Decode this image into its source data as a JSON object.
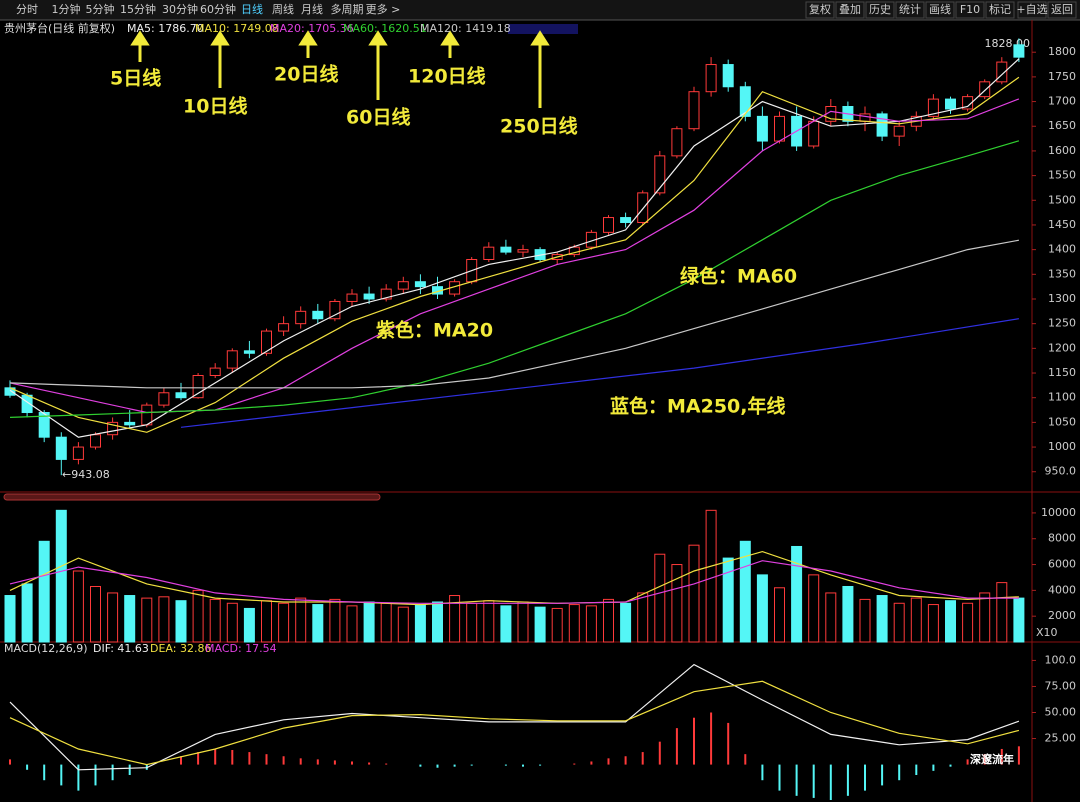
{
  "toolbar": {
    "left": [
      "分时",
      "1分钟",
      "5分钟",
      "15分钟",
      "30分钟",
      "60分钟",
      "日线",
      "周线",
      "月线",
      "多周期",
      "更多 >"
    ],
    "selected_index": 6,
    "right": [
      "复权",
      "叠加",
      "历史",
      "统计",
      "画线",
      "F10",
      "标记",
      "+自选",
      "返回"
    ]
  },
  "watermark": "深邃流年",
  "chart_data": [
    {
      "type": "candlestick",
      "title": "贵州茅台(日线 前复权)",
      "up_color": "#ff3a3a",
      "down_color": "#54f6f6",
      "open": [
        1120,
        1105,
        1070,
        1020,
        975,
        1000,
        1025,
        1050,
        1045,
        1085,
        1110,
        1100,
        1145,
        1160,
        1195,
        1190,
        1235,
        1250,
        1275,
        1260,
        1295,
        1310,
        1300,
        1320,
        1335,
        1325,
        1310,
        1335,
        1380,
        1405,
        1395,
        1400,
        1380,
        1390,
        1405,
        1435,
        1465,
        1455,
        1515,
        1590,
        1645,
        1720,
        1775,
        1730,
        1670,
        1620,
        1670,
        1610,
        1660,
        1690,
        1660,
        1675,
        1630,
        1650,
        1670,
        1705,
        1685,
        1710,
        1740,
        1815
      ],
      "high": [
        1135,
        1110,
        1075,
        1030,
        1010,
        1030,
        1060,
        1075,
        1090,
        1120,
        1130,
        1150,
        1170,
        1200,
        1215,
        1240,
        1265,
        1285,
        1290,
        1300,
        1320,
        1325,
        1330,
        1345,
        1350,
        1345,
        1340,
        1385,
        1415,
        1420,
        1410,
        1405,
        1395,
        1410,
        1440,
        1470,
        1475,
        1520,
        1600,
        1650,
        1730,
        1790,
        1785,
        1740,
        1690,
        1680,
        1690,
        1670,
        1705,
        1700,
        1690,
        1680,
        1660,
        1680,
        1715,
        1710,
        1715,
        1745,
        1790,
        1828
      ],
      "low": [
        1100,
        1060,
        1010,
        943.08,
        965,
        995,
        1015,
        1040,
        1040,
        1080,
        1095,
        1098,
        1140,
        1150,
        1180,
        1185,
        1225,
        1240,
        1250,
        1255,
        1285,
        1290,
        1295,
        1310,
        1310,
        1300,
        1305,
        1330,
        1375,
        1390,
        1385,
        1375,
        1370,
        1385,
        1400,
        1430,
        1445,
        1450,
        1510,
        1585,
        1640,
        1710,
        1720,
        1660,
        1600,
        1615,
        1600,
        1605,
        1650,
        1650,
        1640,
        1620,
        1610,
        1640,
        1665,
        1675,
        1680,
        1705,
        1735,
        1780
      ],
      "close": [
        1105,
        1070,
        1020,
        975,
        1000,
        1025,
        1050,
        1045,
        1085,
        1110,
        1100,
        1145,
        1160,
        1195,
        1190,
        1235,
        1250,
        1275,
        1260,
        1295,
        1310,
        1300,
        1320,
        1335,
        1325,
        1310,
        1335,
        1380,
        1405,
        1395,
        1400,
        1380,
        1390,
        1405,
        1435,
        1465,
        1455,
        1515,
        1590,
        1645,
        1720,
        1775,
        1730,
        1670,
        1620,
        1670,
        1610,
        1660,
        1690,
        1660,
        1675,
        1630,
        1650,
        1670,
        1705,
        1685,
        1710,
        1740,
        1780,
        1790
      ],
      "ylim": [
        913,
        1845
      ],
      "yticks": [
        {
          "value": 950,
          "label": "950.0"
        },
        1000,
        1050,
        1100,
        1150,
        1200,
        1250,
        1300,
        1350,
        1400,
        1450,
        1500,
        1550,
        1600,
        1650,
        1700,
        1750,
        1800
      ],
      "lines": [
        {
          "label": "MA5: 1786.70",
          "color": "#f0f0f0",
          "x": [
            0,
            4,
            8,
            12,
            16,
            20,
            24,
            28,
            32,
            36,
            40,
            44,
            48,
            52,
            56,
            59
          ],
          "values": [
            1115,
            1020,
            1045,
            1130,
            1215,
            1285,
            1320,
            1370,
            1395,
            1440,
            1610,
            1700,
            1650,
            1660,
            1690,
            1786.7
          ]
        },
        {
          "label": "MA10: 1749.08",
          "color": "#f0e040",
          "x": [
            0,
            4,
            8,
            12,
            16,
            20,
            24,
            28,
            32,
            36,
            40,
            44,
            48,
            52,
            56,
            59
          ],
          "values": [
            1120,
            1060,
            1030,
            1090,
            1180,
            1255,
            1305,
            1345,
            1385,
            1420,
            1540,
            1720,
            1665,
            1655,
            1675,
            1749.08
          ]
        },
        {
          "label": "MA20: 1705.36",
          "color": "#e040e0",
          "x": [
            0,
            4,
            8,
            12,
            16,
            20,
            24,
            28,
            32,
            36,
            40,
            44,
            48,
            52,
            56,
            59
          ],
          "values": [
            1130,
            1100,
            1070,
            1075,
            1120,
            1200,
            1270,
            1320,
            1370,
            1400,
            1480,
            1600,
            1680,
            1660,
            1665,
            1705.36
          ]
        },
        {
          "label": "MA60: 1620.51",
          "color": "#30d030",
          "x": [
            0,
            4,
            8,
            12,
            16,
            20,
            24,
            28,
            32,
            36,
            40,
            44,
            48,
            52,
            56,
            59
          ],
          "values": [
            1060,
            1065,
            1070,
            1075,
            1085,
            1100,
            1130,
            1170,
            1220,
            1270,
            1340,
            1420,
            1500,
            1550,
            1590,
            1620.51
          ]
        },
        {
          "label": "MA120: 1419.18",
          "color": "#c8c8c8",
          "x": [
            0,
            4,
            8,
            12,
            16,
            20,
            24,
            28,
            32,
            36,
            40,
            44,
            48,
            52,
            56,
            59
          ],
          "values": [
            1130,
            1125,
            1120,
            1120,
            1120,
            1120,
            1125,
            1140,
            1170,
            1200,
            1240,
            1280,
            1320,
            1360,
            1400,
            1419.18
          ]
        },
        {
          "color": "#3030e0",
          "x": [
            10,
            20,
            30,
            40,
            50,
            59
          ],
          "values": [
            1040,
            1080,
            1120,
            1160,
            1210,
            1260
          ]
        }
      ],
      "high_label": "1828.00",
      "low_label": "←943.08",
      "annotations": [
        "5日线",
        "10日线",
        "20日线",
        "60日线",
        "120日线",
        "250日线",
        "紫色：MA20",
        "绿色：MA60",
        "蓝色：MA250,年线"
      ]
    },
    {
      "type": "volume",
      "values": [
        3600,
        4500,
        7800,
        10200,
        5500,
        4300,
        3800,
        3600,
        3400,
        3500,
        3200,
        4000,
        3300,
        3000,
        2600,
        3200,
        3000,
        3400,
        2900,
        3300,
        2800,
        3100,
        3000,
        2700,
        2900,
        3100,
        3600,
        3000,
        3200,
        2800,
        3100,
        2700,
        2600,
        2900,
        2800,
        3300,
        3000,
        3800,
        6800,
        6000,
        7500,
        10200,
        6500,
        7800,
        5200,
        4200,
        7400,
        5200,
        3800,
        4300,
        3300,
        3600,
        3000,
        3400,
        2900,
        3200,
        3000,
        3800,
        4600,
        3400
      ],
      "ylim": [
        0,
        11000
      ],
      "yticks": [
        2000,
        4000,
        6000,
        8000,
        10000
      ],
      "unit_label": "X10",
      "lines": [
        {
          "color": "#f0e040",
          "x": [
            0,
            4,
            8,
            12,
            16,
            20,
            24,
            28,
            32,
            36,
            40,
            44,
            48,
            52,
            56,
            59
          ],
          "values": [
            4000,
            6500,
            4500,
            3400,
            3100,
            3100,
            2900,
            3200,
            3000,
            3100,
            5500,
            7000,
            5200,
            3600,
            3300,
            3500
          ]
        },
        {
          "color": "#e040e0",
          "x": [
            0,
            4,
            8,
            12,
            16,
            20,
            24,
            28,
            32,
            36,
            40,
            44,
            48,
            52,
            56,
            59
          ],
          "values": [
            4500,
            5800,
            5000,
            3800,
            3300,
            3100,
            3000,
            3000,
            3000,
            3100,
            4500,
            6300,
            5500,
            4200,
            3400,
            3400
          ]
        }
      ]
    },
    {
      "type": "macd",
      "title": "MACD(12,26,9)",
      "histogram": {
        "label": "MACD: 17.54",
        "color": "#e040e0",
        "up_color": "#ff3a3a",
        "down_color": "#54f6f6",
        "values": [
          5,
          -5,
          -15,
          -20,
          -25,
          -20,
          -15,
          -10,
          -5,
          0,
          8,
          12,
          15,
          14,
          12,
          10,
          8,
          6,
          5,
          4,
          3,
          2,
          1,
          0,
          -2,
          -3,
          -2,
          -1,
          0,
          -1,
          -2,
          -1,
          0,
          1,
          3,
          6,
          8,
          12,
          22,
          35,
          45,
          50,
          40,
          10,
          -15,
          -25,
          -30,
          -32,
          -34,
          -30,
          -25,
          -20,
          -15,
          -10,
          -6,
          -2,
          5,
          10,
          15,
          17.54
        ]
      },
      "ylim": [
        -34,
        110
      ],
      "yticks": [
        {
          "value": 25,
          "label": "25.00"
        },
        {
          "value": 50,
          "label": "50.00"
        },
        {
          "value": 75,
          "label": "75.00"
        },
        {
          "value": 100,
          "label": "100.0"
        }
      ],
      "lines": [
        {
          "label": "DIF: 41.63",
          "color": "#f0f0f0",
          "x": [
            0,
            4,
            8,
            12,
            16,
            20,
            24,
            28,
            32,
            36,
            40,
            44,
            48,
            52,
            56,
            59
          ],
          "values": [
            60,
            -5,
            -3,
            29,
            43,
            49,
            45,
            41,
            41,
            41,
            96,
            62,
            29,
            19,
            24,
            41.63
          ]
        },
        {
          "label": "DEA: 32.86",
          "color": "#f0e040",
          "x": [
            0,
            4,
            8,
            12,
            16,
            20,
            24,
            28,
            32,
            36,
            40,
            44,
            48,
            52,
            56,
            59
          ],
          "values": [
            45,
            15,
            0,
            15,
            35,
            47,
            48,
            44,
            42,
            42,
            70,
            80,
            50,
            30,
            20,
            32.86
          ]
        }
      ]
    }
  ]
}
